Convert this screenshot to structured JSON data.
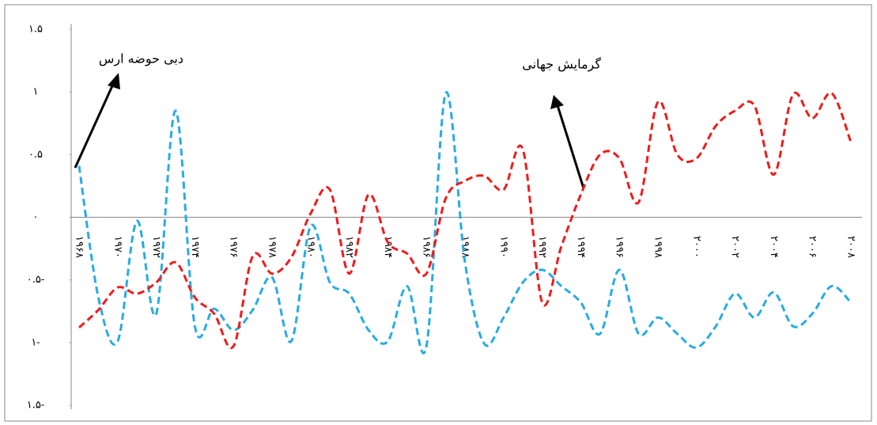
{
  "chart_data": {
    "type": "line",
    "categories": [
      "۱۹۶۸",
      null,
      "۱۹۷۰",
      null,
      "۱۹۷۲",
      null,
      "۱۹۷۴",
      null,
      "۱۹۷۶",
      null,
      "۱۹۷۸",
      null,
      "۱۹۸۰",
      null,
      "۱۹۸۲",
      null,
      "۱۹۸۴",
      null,
      "۱۹۸۶",
      null,
      "۱۹۸۸",
      null,
      "۱۹۹۰",
      null,
      "۱۹۹۲",
      null,
      "۱۹۹۴",
      null,
      "۱۹۹۶",
      null,
      "۱۹۹۸",
      null,
      "۲۰۰۰",
      null,
      "۲۰۰۲",
      null,
      "۲۰۰۴",
      null,
      "۲۰۰۶",
      null,
      "۲۰۰۸"
    ],
    "series": [
      {
        "name": "دبی حوضه ارس",
        "color": "#29abe2",
        "values": [
          0.41,
          -0.64,
          -0.99,
          -0.03,
          -0.77,
          0.85,
          -0.87,
          -0.73,
          -0.9,
          -0.74,
          -0.48,
          -0.99,
          -0.07,
          -0.52,
          -0.61,
          -0.9,
          -0.99,
          -0.55,
          -1.03,
          0.99,
          -0.36,
          -1.01,
          -0.8,
          -0.52,
          -0.42,
          -0.55,
          -0.68,
          -0.93,
          -0.42,
          -0.93,
          -0.8,
          -0.93,
          -1.04,
          -0.87,
          -0.61,
          -0.8,
          -0.6,
          -0.87,
          -0.77,
          -0.55,
          -0.68
        ]
      },
      {
        "name": "گرمایش جهانی",
        "color": "#ee1c1c",
        "values": [
          -0.88,
          -0.74,
          -0.56,
          -0.61,
          -0.52,
          -0.36,
          -0.64,
          -0.77,
          -1.03,
          -0.31,
          -0.45,
          -0.32,
          0.03,
          0.22,
          -0.45,
          0.18,
          -0.2,
          -0.29,
          -0.45,
          0.15,
          0.29,
          0.33,
          0.22,
          0.54,
          -0.68,
          -0.23,
          0.18,
          0.5,
          0.47,
          0.12,
          0.92,
          0.5,
          0.47,
          0.73,
          0.85,
          0.89,
          0.34,
          0.98,
          0.79,
          0.99,
          0.6
        ]
      }
    ],
    "ylim": [
      -1.5,
      1.5
    ],
    "yticks": [
      {
        "value": -1.5,
        "label": "۱.۵-"
      },
      {
        "value": -1,
        "label": "۱-"
      },
      {
        "value": -0.5,
        "label": "۰.۵-"
      },
      {
        "value": 0,
        "label": "۰"
      },
      {
        "value": 0.5,
        "label": "۰.۵"
      },
      {
        "value": 1,
        "label": "۱"
      },
      {
        "value": 1.5,
        "label": "۱.۵"
      }
    ],
    "zero_line": true
  }
}
